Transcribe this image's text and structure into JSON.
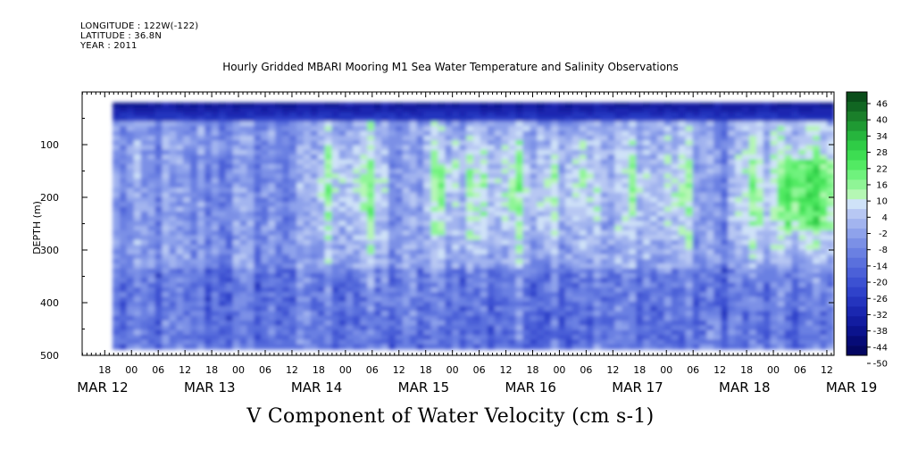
{
  "header": {
    "longitude": "LONGITUDE : 122W(-122)",
    "latitude": "LATITUDE : 36.8N",
    "year": "YEAR : 2011"
  },
  "chart_data": {
    "type": "heatmap",
    "title": "Hourly Gridded MBARI Mooring M1 Sea Water Temperature and Salinity Observations",
    "xlabel": "V Component of Water Velocity (cm s-1)",
    "ylabel": "DEPTH (m)",
    "yticks": [
      "100",
      "200",
      "300",
      "400",
      "500"
    ],
    "ylim": [
      0,
      500
    ],
    "y_reversed": true,
    "x_hour_labels": [
      "18",
      "00",
      "06",
      "12",
      "18",
      "00",
      "06",
      "12",
      "18",
      "00",
      "06",
      "12",
      "18",
      "00",
      "06",
      "12",
      "18",
      "00",
      "06",
      "12",
      "18",
      "00",
      "06",
      "12",
      "18",
      "00",
      "06",
      "12"
    ],
    "x_day_labels": [
      "MAR 12",
      "MAR 13",
      "MAR 14",
      "MAR 15",
      "MAR 16",
      "MAR 17",
      "MAR 18",
      "MAR 19"
    ],
    "colorbar": {
      "labels": [
        "46",
        "40",
        "34",
        "28",
        "22",
        "16",
        "10",
        "4",
        "-2",
        "-8",
        "-14",
        "-20",
        "-26",
        "-32",
        "-38",
        "-44",
        "-50"
      ],
      "min": -50,
      "max": 49,
      "step": 3
    },
    "data_depth_range": [
      20,
      487
    ]
  }
}
